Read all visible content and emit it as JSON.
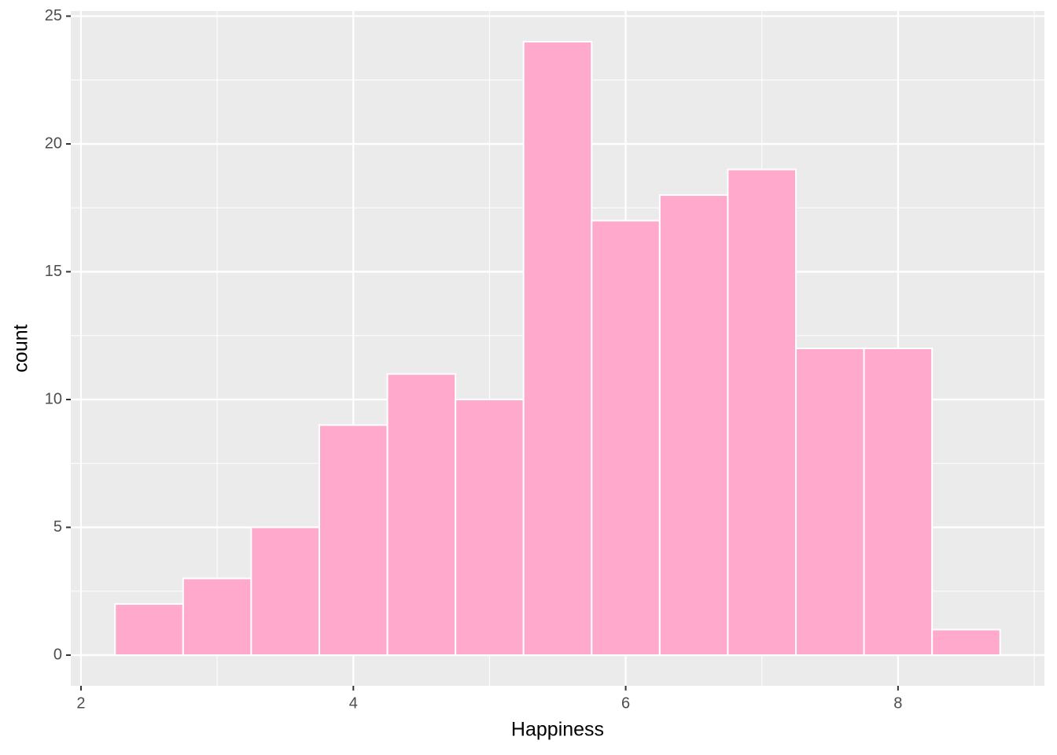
{
  "chart_data": {
    "type": "histogram",
    "x_label": "Happiness",
    "y_label": "count",
    "bins": [
      2.25,
      2.75,
      3.25,
      3.75,
      4.25,
      4.75,
      5.25,
      5.75,
      6.25,
      6.75,
      7.25,
      7.75,
      8.25,
      8.75
    ],
    "values": [
      2,
      3,
      5,
      9,
      11,
      10,
      24,
      17,
      18,
      19,
      12,
      12,
      1
    ],
    "color": "#ffa9cd",
    "edge_color": "#ffffff",
    "xlim": [
      1.925,
      9.075
    ],
    "xticks": [
      2,
      4,
      6,
      8
    ],
    "ylim": [
      -1.2,
      25.2
    ],
    "yticks": [
      0,
      5,
      10,
      15,
      20,
      25
    ],
    "grid": true,
    "minor_grid": true
  }
}
